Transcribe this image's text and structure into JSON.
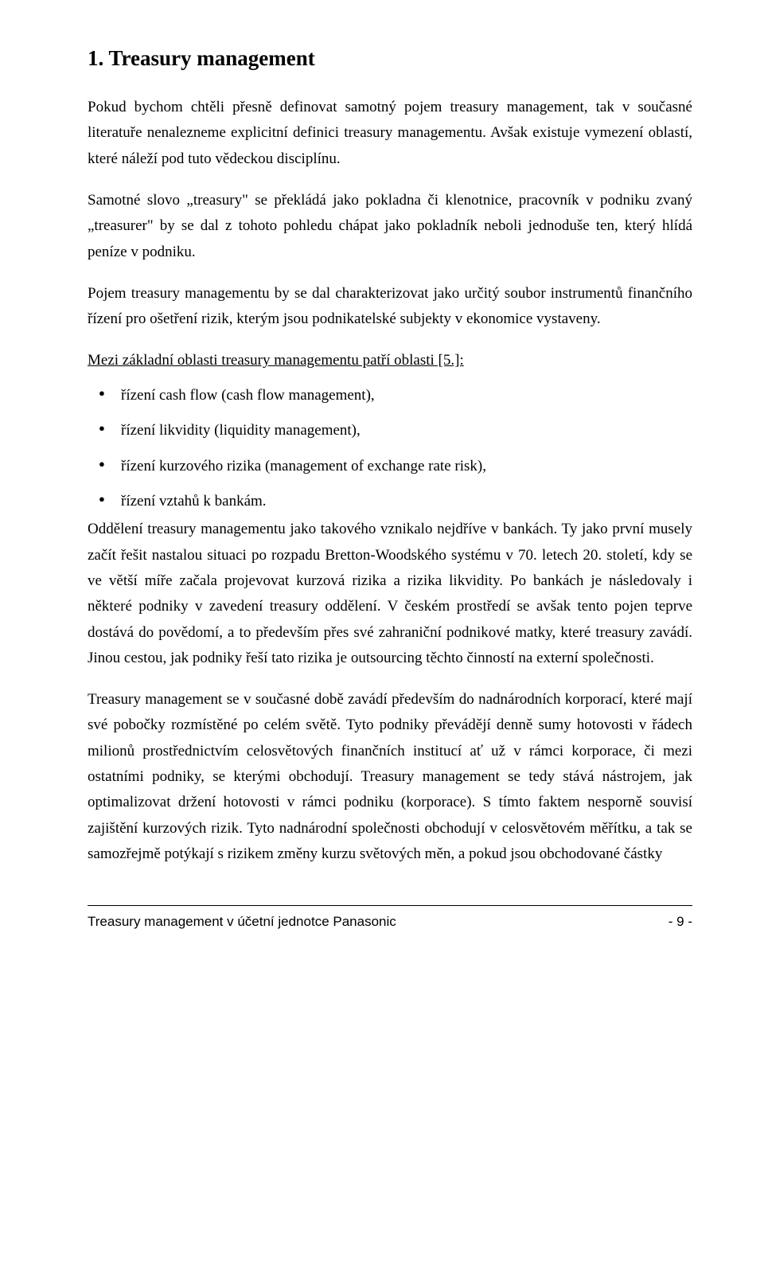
{
  "page": {
    "heading": "1. Treasury management",
    "para1": "Pokud bychom chtěli přesně definovat samotný pojem treasury management, tak v současné literatuře nenalezneme explicitní definici treasury managementu. Avšak existuje vymezení oblastí, které náleží pod tuto vědeckou disciplínu.",
    "para2": "Samotné slovo „treasury\" se překládá jako pokladna či klenotnice, pracovník v podniku zvaný „treasurer\" by se dal z tohoto pohledu chápat jako pokladník neboli jednoduše ten, který hlídá peníze v podniku.",
    "para3": "Pojem treasury managementu by se dal charakterizovat jako určitý soubor instrumentů finančního řízení pro ošetření rizik, kterým jsou podnikatelské subjekty v ekonomice vystaveny.",
    "underlined": "Mezi základní oblasti treasury managementu patří oblasti [5.]:",
    "bullets": {
      "b1": "řízení cash flow (cash flow management),",
      "b2": "řízení likvidity (liquidity management),",
      "b3": "řízení kurzového rizika (management of exchange rate risk),",
      "b4": "řízení vztahů k bankám."
    },
    "para4": "Oddělení treasury managementu jako takového vznikalo nejdříve v bankách. Ty jako první musely začít řešit nastalou situaci po rozpadu Bretton-Woodského systému v 70. letech 20. století, kdy se ve větší míře začala projevovat kurzová rizika a rizika likvidity. Po bankách je následovaly i některé podniky v zavedení treasury oddělení. V českém prostředí se avšak tento pojen teprve dostává do povědomí, a to především přes své zahraniční podnikové matky, které treasury zavádí. Jinou cestou, jak podniky řeší tato rizika je outsourcing těchto činností na externí společnosti.",
    "para5": "Treasury management se v současné době zavádí především do nadnárodních korporací, které mají své pobočky rozmístěné po celém světě. Tyto podniky převádějí denně sumy hotovosti v řádech milionů prostřednictvím celosvětových finančních institucí ať už v rámci korporace, či mezi ostatními podniky, se kterými obchodují. Treasury management se tedy stává nástrojem, jak optimalizovat držení hotovosti v rámci podniku (korporace). S tímto faktem nesporně souvisí zajištění kurzových rizik. Tyto nadnárodní společnosti obchodují v celosvětovém měřítku, a tak se samozřejmě potýkají s rizikem změny kurzu světových měn, a pokud jsou obchodované částky"
  },
  "footer": {
    "left": "Treasury management v účetní jednotce Panasonic",
    "right": "- 9 -"
  }
}
